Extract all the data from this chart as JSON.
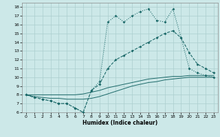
{
  "bg_color": "#cce8e8",
  "grid_color": "#aacece",
  "line_color": "#1a6868",
  "xlim": [
    -0.5,
    23.5
  ],
  "ylim": [
    6,
    18.5
  ],
  "xticks": [
    0,
    1,
    2,
    3,
    4,
    5,
    6,
    7,
    8,
    9,
    10,
    11,
    12,
    13,
    14,
    15,
    16,
    17,
    18,
    19,
    20,
    21,
    22,
    23
  ],
  "yticks": [
    6,
    7,
    8,
    9,
    10,
    11,
    12,
    13,
    14,
    15,
    16,
    17,
    18
  ],
  "xlabel": "Humidex (Indice chaleur)",
  "lineA_x": [
    0,
    1,
    2,
    3,
    4,
    5,
    6,
    7,
    8,
    9,
    10,
    11,
    12,
    13,
    14,
    15,
    16,
    17,
    18,
    19,
    20,
    21,
    22,
    23
  ],
  "lineA_y": [
    8.0,
    7.7,
    7.5,
    7.3,
    7.0,
    7.0,
    6.5,
    6.0,
    8.5,
    9.5,
    16.3,
    17.0,
    16.3,
    17.0,
    17.5,
    17.8,
    16.5,
    16.3,
    17.8,
    14.5,
    11.0,
    10.5,
    10.2,
    10.0
  ],
  "lineB_x": [
    0,
    1,
    2,
    3,
    4,
    5,
    6,
    7,
    8,
    9,
    10,
    11,
    12,
    13,
    14,
    15,
    16,
    17,
    18,
    19,
    20,
    21,
    22,
    23
  ],
  "lineB_y": [
    8.0,
    7.7,
    7.5,
    7.3,
    7.0,
    7.0,
    6.5,
    6.0,
    8.5,
    9.2,
    11.0,
    12.0,
    12.5,
    13.0,
    13.5,
    14.0,
    14.5,
    15.0,
    15.3,
    14.5,
    12.8,
    11.5,
    11.0,
    10.5
  ],
  "lineC_x": [
    0,
    1,
    2,
    3,
    4,
    5,
    6,
    7,
    8,
    9,
    10,
    11,
    12,
    13,
    14,
    15,
    16,
    17,
    18,
    19,
    20,
    21,
    22,
    23
  ],
  "lineC_y": [
    8.0,
    8.0,
    8.0,
    8.0,
    8.0,
    8.0,
    8.0,
    8.1,
    8.3,
    8.5,
    8.8,
    9.0,
    9.2,
    9.4,
    9.6,
    9.8,
    9.9,
    10.0,
    10.1,
    10.1,
    10.2,
    10.2,
    10.2,
    10.2
  ],
  "lineD_x": [
    0,
    1,
    2,
    3,
    4,
    5,
    6,
    7,
    8,
    9,
    10,
    11,
    12,
    13,
    14,
    15,
    16,
    17,
    18,
    19,
    20,
    21,
    22,
    23
  ],
  "lineD_y": [
    8.0,
    7.8,
    7.7,
    7.6,
    7.6,
    7.5,
    7.5,
    7.5,
    7.6,
    7.8,
    8.1,
    8.4,
    8.7,
    9.0,
    9.2,
    9.4,
    9.5,
    9.7,
    9.8,
    9.9,
    10.0,
    10.0,
    10.0,
    10.0
  ]
}
